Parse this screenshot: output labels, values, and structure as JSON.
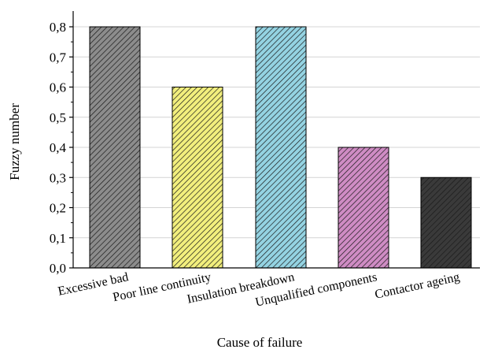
{
  "chart_data": {
    "type": "bar",
    "title": "",
    "xlabel": "Cause of failure",
    "ylabel": "Fuzzy number",
    "categories": [
      "Excessive bad",
      "Poor line continuity",
      "Insulation breakdown",
      "Unqualified components",
      "Contactor ageing"
    ],
    "values": [
      0.8,
      0.6,
      0.8,
      0.4,
      0.3
    ],
    "ylim": [
      0.0,
      0.85
    ],
    "yticks": [
      0.0,
      0.1,
      0.2,
      0.3,
      0.4,
      0.5,
      0.6,
      0.7,
      0.8
    ],
    "ytick_labels": [
      "0,0",
      "0,1",
      "0,2",
      "0,3",
      "0,4",
      "0,5",
      "0,6",
      "0,7",
      "0,8"
    ],
    "grid": true,
    "legend": "none",
    "bar_colors": [
      "#8c8c8c",
      "#f2ef7d",
      "#94d3e2",
      "#cf8cc4",
      "#3a3a3a"
    ],
    "hatch": "diagonal"
  }
}
